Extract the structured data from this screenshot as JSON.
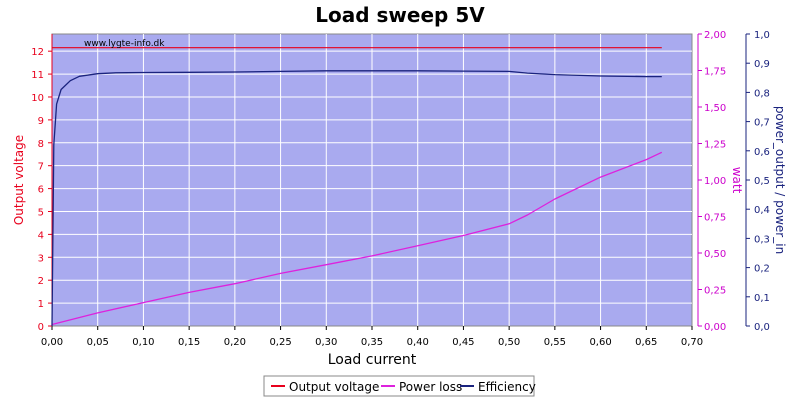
{
  "chart_data": {
    "type": "line",
    "title": "Load sweep 5V",
    "watermark": "www.lygte-info.dk",
    "xlabel": "Load current",
    "xlim": [
      0,
      0.7
    ],
    "x_ticks": [
      "0,00",
      "0,05",
      "0,10",
      "0,15",
      "0,20",
      "0,25",
      "0,30",
      "0,35",
      "0,40",
      "0,45",
      "0,50",
      "0,55",
      "0,60",
      "0,65",
      "0,70"
    ],
    "y_left": {
      "label": "Output voltage",
      "color": "#e8001c",
      "lim": [
        0,
        12.75
      ],
      "ticks": [
        "0",
        "1",
        "2",
        "3",
        "4",
        "5",
        "6",
        "7",
        "8",
        "9",
        "10",
        "11",
        "12"
      ]
    },
    "y_right1": {
      "label": "watt",
      "color": "#cc00cc",
      "lim": [
        0,
        2.0
      ],
      "ticks": [
        "0,00",
        "0,25",
        "0,50",
        "0,75",
        "1,00",
        "1,25",
        "1,50",
        "1,75",
        "2,00"
      ]
    },
    "y_right2": {
      "label": "power_output / power_in",
      "color": "#1a237e",
      "lim": [
        0,
        1.0
      ],
      "ticks": [
        "0,0",
        "0,1",
        "0,2",
        "0,3",
        "0,4",
        "0,5",
        "0,6",
        "0,7",
        "0,8",
        "0,9",
        "1,0"
      ]
    },
    "grid": true,
    "legend_position": "bottom-center",
    "series": [
      {
        "name": "Output voltage",
        "color": "#e8001c",
        "axis": "left",
        "x": [
          0.0,
          0.667
        ],
        "y": [
          12.15,
          12.15
        ]
      },
      {
        "name": "Power loss",
        "color": "#dd22dd",
        "axis": "right1",
        "x": [
          0.0,
          0.05,
          0.1,
          0.15,
          0.2,
          0.25,
          0.3,
          0.35,
          0.4,
          0.45,
          0.5,
          0.52,
          0.55,
          0.6,
          0.65,
          0.667
        ],
        "y": [
          0.01,
          0.09,
          0.16,
          0.23,
          0.29,
          0.36,
          0.42,
          0.48,
          0.55,
          0.62,
          0.7,
          0.76,
          0.87,
          1.02,
          1.14,
          1.19
        ]
      },
      {
        "name": "Efficiency",
        "color": "#1a237e",
        "axis": "right2",
        "x": [
          0.0,
          0.002,
          0.005,
          0.01,
          0.02,
          0.03,
          0.05,
          0.07,
          0.1,
          0.15,
          0.2,
          0.25,
          0.3,
          0.35,
          0.4,
          0.45,
          0.5,
          0.52,
          0.55,
          0.6,
          0.65,
          0.667
        ],
        "y": [
          0.0,
          0.62,
          0.76,
          0.81,
          0.84,
          0.855,
          0.864,
          0.867,
          0.868,
          0.869,
          0.87,
          0.872,
          0.874,
          0.874,
          0.874,
          0.873,
          0.872,
          0.866,
          0.861,
          0.856,
          0.854,
          0.854
        ]
      }
    ]
  }
}
